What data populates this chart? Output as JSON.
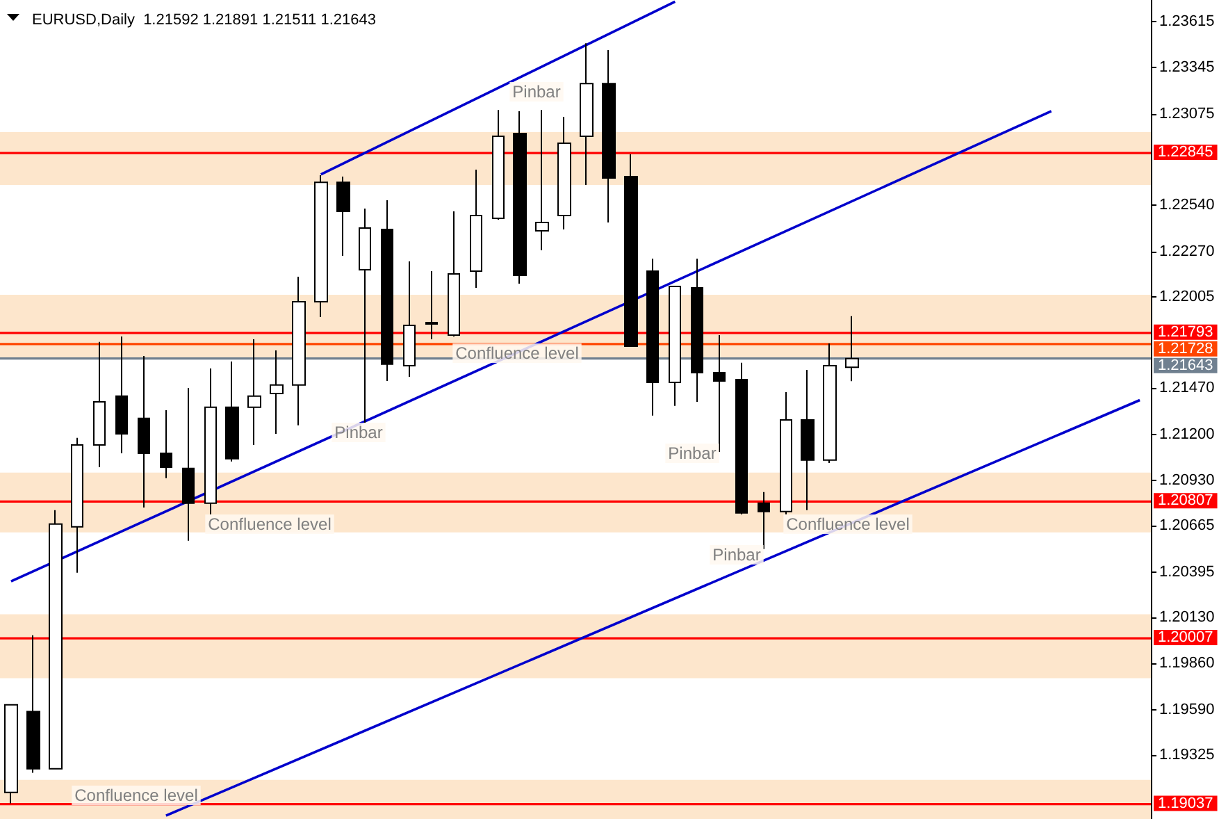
{
  "chart_data": {
    "type": "candlestick",
    "title": "EURUSD,Daily  1.21592 1.21891 1.21511 1.21643",
    "categories": [
      null,
      null,
      null,
      null,
      null,
      null,
      null,
      null,
      null,
      null,
      null,
      null,
      null,
      null,
      null,
      null,
      null,
      null,
      null,
      null,
      null,
      null,
      null,
      null,
      null,
      null,
      null,
      null,
      null,
      null,
      null,
      null,
      null,
      null,
      null,
      null,
      null,
      null,
      null,
      null,
      null,
      null,
      null,
      null,
      null,
      null,
      null,
      null,
      null,
      null,
      null,
      null
    ],
    "ohlc": [
      [
        1.19106,
        1.19618,
        1.19041,
        1.19618
      ],
      [
        1.19578,
        1.20025,
        1.1922,
        1.19244
      ],
      [
        1.19244,
        1.20756,
        1.19244,
        1.20675
      ],
      [
        1.20659,
        1.21179,
        1.2039,
        1.21138
      ],
      [
        1.21138,
        1.2174,
        1.21008,
        1.2139
      ],
      [
        1.21423,
        1.21772,
        1.21089,
        1.21203
      ],
      [
        1.21293,
        1.21658,
        1.20772,
        1.21089
      ],
      [
        1.21089,
        1.21341,
        1.20943,
        1.21008
      ],
      [
        1.21,
        1.21471,
        1.20577,
        1.20797
      ],
      [
        1.20797,
        1.21585,
        1.20732,
        1.21358
      ],
      [
        1.21358,
        1.21626,
        1.21041,
        1.21057
      ],
      [
        1.21358,
        1.21756,
        1.21138,
        1.21423
      ],
      [
        1.21439,
        1.21691,
        1.21203,
        1.21488
      ],
      [
        1.21488,
        1.22122,
        1.21252,
        1.21975
      ],
      [
        1.21975,
        1.22715,
        1.21886,
        1.22674
      ],
      [
        1.22674,
        1.22707,
        1.22244,
        1.22504
      ],
      [
        1.22162,
        1.2252,
        1.21268,
        1.22406
      ],
      [
        1.22398,
        1.22569,
        1.21512,
        1.2161
      ],
      [
        1.21601,
        1.22211,
        1.21536,
        1.21837
      ],
      [
        1.21845,
        1.22154,
        1.21756,
        1.21853
      ],
      [
        1.2178,
        1.22504,
        1.21772,
        1.22138
      ],
      [
        1.22154,
        1.22748,
        1.22057,
        1.22479
      ],
      [
        1.22463,
        1.23097,
        1.22455,
        1.22943
      ],
      [
        1.22959,
        1.23089,
        1.22081,
        1.2213
      ],
      [
        1.2239,
        1.23097,
        1.22276,
        1.22439
      ],
      [
        1.22479,
        1.23056,
        1.22398,
        1.22902
      ],
      [
        1.22943,
        1.23487,
        1.22658,
        1.23251
      ],
      [
        1.23251,
        1.23447,
        1.22439,
        1.22699
      ],
      [
        1.22707,
        1.22837,
        1.21715,
        1.21715
      ],
      [
        1.22154,
        1.22227,
        1.21309,
        1.21504
      ],
      [
        1.21504,
        1.22065,
        1.21366,
        1.22065
      ],
      [
        1.22057,
        1.22227,
        1.2139,
        1.21561
      ],
      [
        1.21561,
        1.2178,
        1.21097,
        1.21512
      ],
      [
        1.2152,
        1.21618,
        1.20732,
        1.2074
      ],
      [
        1.20797,
        1.20862,
        1.20529,
        1.20748
      ],
      [
        1.20748,
        1.21447,
        1.20732,
        1.21284
      ],
      [
        1.21284,
        1.21577,
        1.20756,
        1.21049
      ],
      [
        1.21049,
        1.21731,
        1.21032,
        1.21601
      ],
      [
        1.21592,
        1.21891,
        1.21511,
        1.21643
      ],
      null,
      null,
      null,
      null,
      null,
      null,
      null,
      null,
      null,
      null,
      null,
      null,
      null
    ],
    "series": [
      {
        "type": "line",
        "color": "#0000cc",
        "values": [
          1.2034,
          null,
          null,
          null,
          null,
          null,
          null,
          null,
          null,
          null,
          null,
          null,
          null,
          null,
          null,
          null,
          null,
          null,
          null,
          null,
          null,
          null,
          null,
          null,
          null,
          null,
          null,
          null,
          null,
          null,
          null,
          null,
          null,
          null,
          null,
          null,
          null,
          null,
          null,
          null,
          null,
          null,
          null,
          null,
          null,
          null,
          null,
          1.2309,
          null,
          null,
          null,
          null
        ]
      },
      {
        "type": "line",
        "color": "#0000cc",
        "values": [
          null,
          null,
          null,
          null,
          null,
          null,
          null,
          1.1897,
          null,
          null,
          null,
          null,
          null,
          null,
          null,
          null,
          null,
          null,
          null,
          null,
          null,
          null,
          null,
          null,
          null,
          null,
          null,
          null,
          null,
          null,
          null,
          null,
          null,
          null,
          null,
          null,
          null,
          null,
          null,
          null,
          null,
          null,
          null,
          null,
          null,
          null,
          null,
          null,
          null,
          null,
          null,
          1.214
        ]
      },
      {
        "type": "line",
        "color": "#0000cc",
        "values": [
          null,
          null,
          null,
          null,
          null,
          null,
          null,
          null,
          null,
          null,
          null,
          null,
          null,
          null,
          1.2272,
          null,
          null,
          null,
          null,
          null,
          null,
          null,
          null,
          null,
          null,
          null,
          null,
          null,
          null,
          null,
          1.2373,
          null,
          null,
          null,
          null,
          null,
          null,
          null,
          null,
          null,
          null,
          null,
          null,
          null,
          null,
          null,
          null,
          null,
          null,
          null,
          null,
          null
        ]
      }
    ],
    "ref_lines": [
      {
        "axis": "y",
        "value": 1.22845,
        "label": "1.22845",
        "color": "#ff0000"
      },
      {
        "axis": "y",
        "value": 1.21793,
        "label": "1.21793",
        "color": "#ff0000"
      },
      {
        "axis": "y",
        "value": 1.21728,
        "label": "1.21728",
        "color": "#ff4500"
      },
      {
        "axis": "y",
        "value": 1.21643,
        "label": "1.21643",
        "color": "#708090"
      },
      {
        "axis": "y",
        "value": 1.20807,
        "label": "1.20807",
        "color": "#ff0000"
      },
      {
        "axis": "y",
        "value": 1.20007,
        "label": "1.20007",
        "color": "#ff0000"
      },
      {
        "axis": "y",
        "value": 1.19037,
        "label": "1.19037",
        "color": "#ff0000"
      }
    ],
    "bands": [
      {
        "axis": "y",
        "from": 1.22658,
        "to": 1.22967,
        "color": "#fde3c6"
      },
      {
        "axis": "y",
        "from": 1.21642,
        "to": 1.22016,
        "color": "#fde3c6"
      },
      {
        "axis": "y",
        "from": 1.20626,
        "to": 1.20976,
        "color": "#fde3c6"
      },
      {
        "axis": "y",
        "from": 1.19773,
        "to": 1.20147,
        "color": "#fde3c6"
      },
      {
        "axis": "y",
        "from": 1.1895,
        "to": 1.19179,
        "color": "#fde3c6"
      }
    ],
    "annotations": [
      "Pinbar",
      "Confluence level",
      "Pinbar",
      "Pinbar",
      "Confluence level",
      "Confluence level",
      "Pinbar",
      "Confluence level"
    ],
    "ylim": [
      1.1895,
      1.2374
    ],
    "yticks": [
      {
        "value": 1.23615,
        "label": "1.23615"
      },
      {
        "value": 1.23345,
        "label": "1.23345"
      },
      {
        "value": 1.23075,
        "label": "1.23075"
      },
      {
        "value": 1.2254,
        "label": "1.22540"
      },
      {
        "value": 1.2227,
        "label": "1.22270"
      },
      {
        "value": 1.22005,
        "label": "1.22005"
      },
      {
        "value": 1.2147,
        "label": "1.21470"
      },
      {
        "value": 1.212,
        "label": "1.21200"
      },
      {
        "value": 1.2093,
        "label": "1.20930"
      },
      {
        "value": 1.20665,
        "label": "1.20665"
      },
      {
        "value": 1.20395,
        "label": "1.20395"
      },
      {
        "value": 1.2013,
        "label": "1.20130"
      },
      {
        "value": 1.1986,
        "label": "1.19860"
      },
      {
        "value": 1.1959,
        "label": "1.19590"
      },
      {
        "value": 1.19325,
        "label": "1.19325"
      }
    ],
    "tick_labels": "y",
    "grid": false
  }
}
